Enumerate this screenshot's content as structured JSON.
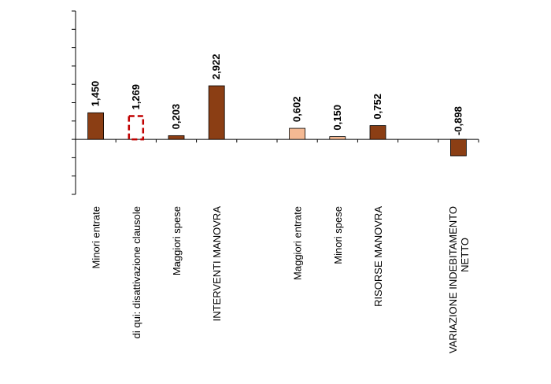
{
  "chart_data": {
    "type": "bar",
    "title": "",
    "xlabel": "",
    "ylabel": "",
    "ylim": [
      -3,
      7
    ],
    "grid": false,
    "legend": "none",
    "categories": [
      "Minori entrate",
      "di qui: disattivazione clausole",
      "Maggiori spese",
      "INTERVENTI MANOVRA",
      "",
      "Maggiori entrate",
      "Minori spese",
      "RISORSE MANOVRA",
      "",
      "VARIAZIONE INDEBITAMENTO NETTO"
    ],
    "category_lines": [
      [
        "Minori entrate"
      ],
      [
        "di qui: disattivazione clausole"
      ],
      [
        "Maggiori spese"
      ],
      [
        "INTERVENTI MANOVRA"
      ],
      [],
      [
        "Maggiori entrate"
      ],
      [
        "Minori spese"
      ],
      [
        "RISORSE MANOVRA"
      ],
      [],
      [
        "VARIAZIONE INDEBITAMENTO",
        "NETTO"
      ]
    ],
    "values": [
      1.45,
      1.269,
      0.203,
      2.922,
      null,
      0.602,
      0.15,
      0.752,
      null,
      -0.898
    ],
    "value_labels": [
      "1,450",
      "1,269",
      "0,203",
      "2,922",
      "",
      "0,602",
      "0,150",
      "0,752",
      "",
      "-0,898"
    ],
    "bar_styles": [
      "solid",
      "dashed-outline",
      "solid",
      "solid",
      "none",
      "solid",
      "solid",
      "solid",
      "none",
      "solid"
    ],
    "colors": {
      "dark": "#8B3E14",
      "light": "#F4B993",
      "dashed": "#C00000"
    },
    "bar_colors": [
      "dark",
      "dashed",
      "dark",
      "dark",
      "",
      "light",
      "light",
      "dark",
      "",
      "dark"
    ]
  }
}
